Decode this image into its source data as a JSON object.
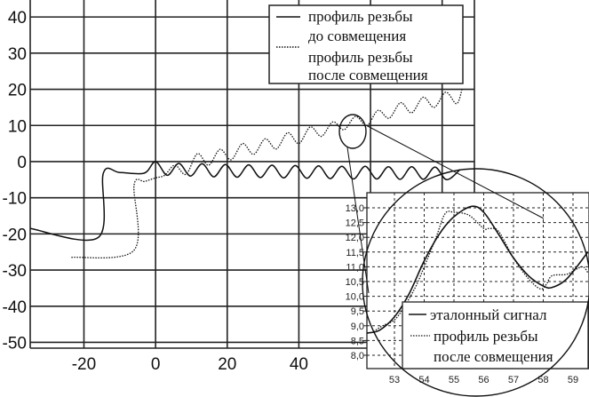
{
  "chart_data": [
    {
      "type": "line",
      "title": "",
      "xlabel": "",
      "ylabel": "",
      "xlim": [
        -35,
        89
      ],
      "ylim": [
        -51.6,
        44.7
      ],
      "x_ticks": [
        -20,
        0,
        20,
        40
      ],
      "x_grid": [
        -20,
        0,
        20,
        40,
        60,
        80
      ],
      "y_ticks": [
        40,
        30,
        20,
        10,
        0,
        -10,
        -20,
        -30,
        -40,
        -50
      ],
      "grid": true,
      "legend_placement": "top-right",
      "legend": [
        "профиль резьбы до совмещения",
        "профиль резьбы после совмещения"
      ],
      "legend_lines": [
        [
          "профиль резьбы",
          "до совмещения"
        ],
        [
          "профиль резьбы",
          "после совмещения"
        ]
      ],
      "series": [
        {
          "name": "профиль резьбы до совмещения",
          "style": "solid",
          "points": [
            [
              -35,
              -18.5
            ],
            [
              -16,
              -21
            ],
            [
              -14.6,
              -3.2
            ],
            [
              -10,
              -3
            ],
            [
              -3.2,
              -3.2
            ],
            [
              0,
              0
            ],
            [
              3.25,
              -3.8
            ],
            [
              6.5,
              -0.5
            ],
            [
              9.75,
              -4
            ],
            [
              13,
              -0.6
            ],
            [
              16.25,
              -4.2
            ],
            [
              19.5,
              -0.8
            ],
            [
              22.75,
              -4.3
            ],
            [
              26,
              -0.9
            ],
            [
              29.25,
              -4.4
            ],
            [
              32.5,
              -1
            ],
            [
              35.75,
              -4.5
            ],
            [
              39,
              -1.1
            ],
            [
              42.25,
              -4.6
            ],
            [
              45.5,
              -1.2
            ],
            [
              48.75,
              -4.7
            ],
            [
              52,
              -1.3
            ],
            [
              55.25,
              -4.8
            ],
            [
              58.5,
              -1.3
            ],
            [
              61.75,
              -4.8
            ],
            [
              65,
              -1.4
            ],
            [
              68.25,
              -4.9
            ],
            [
              71.5,
              -1.4
            ],
            [
              74.75,
              -4.9
            ],
            [
              78,
              -1.5
            ],
            [
              81.25,
              -5
            ],
            [
              85,
              -2.2
            ]
          ]
        },
        {
          "name": "профиль резьбы после совмещения",
          "style": "dotted",
          "points": [
            [
              -23.5,
              -26.5
            ],
            [
              -6,
              -24.5
            ],
            [
              -6,
              -6.5
            ],
            [
              -3,
              -5.5
            ],
            [
              0,
              -4.5
            ],
            [
              2.5,
              -3.8
            ],
            [
              5.4,
              -1
            ],
            [
              8.5,
              -3.5
            ],
            [
              11.7,
              2.2
            ],
            [
              14.8,
              -1
            ],
            [
              18,
              3.4
            ],
            [
              21.1,
              0.5
            ],
            [
              24.3,
              5
            ],
            [
              27.4,
              2
            ],
            [
              30.6,
              6.3
            ],
            [
              33.7,
              3.5
            ],
            [
              36.9,
              8
            ],
            [
              40,
              5
            ],
            [
              43.2,
              9.6
            ],
            [
              46.3,
              7
            ],
            [
              49.5,
              11
            ],
            [
              52.6,
              8.8
            ],
            [
              55.8,
              12.5
            ],
            [
              59,
              10
            ],
            [
              62.1,
              14.2
            ],
            [
              65.2,
              12
            ],
            [
              68.4,
              16.3
            ],
            [
              71.5,
              13.5
            ],
            [
              74.7,
              17.8
            ],
            [
              77.8,
              15
            ],
            [
              81,
              19.2
            ],
            [
              84,
              16
            ],
            [
              85.5,
              19.8
            ]
          ]
        }
      ]
    },
    {
      "type": "line",
      "title": "",
      "xlabel": "",
      "ylabel": "",
      "xlim": [
        52.07,
        59.5
      ],
      "ylim": [
        7.5,
        13.5
      ],
      "x_ticks": [
        53,
        54,
        55,
        56,
        57,
        58,
        59
      ],
      "y_ticks": [
        "13,0",
        "12,5",
        "12,0",
        "11,5",
        "11,0",
        "10,5",
        "10,0",
        "9,5",
        "9,0",
        "8,5",
        "8,0"
      ],
      "y_tick_values": [
        13.0,
        12.5,
        12.0,
        11.5,
        11.0,
        10.5,
        10.0,
        9.5,
        9.0,
        8.5,
        8.0
      ],
      "grid": "dashed",
      "legend_placement": "bottom-right",
      "legend_lines": [
        [
          "эталонный сигнал"
        ],
        [
          "профиль резьбы",
          "после совмещения"
        ]
      ],
      "series": [
        {
          "name": "эталонный сигнал",
          "style": "solid",
          "points": [
            [
              52.07,
              8.75
            ],
            [
              52.5,
              8.85
            ],
            [
              53,
              9.3
            ],
            [
              53.5,
              10.1
            ],
            [
              54,
              11.2
            ],
            [
              54.5,
              12.1
            ],
            [
              55,
              12.7
            ],
            [
              55.6,
              13.05
            ],
            [
              56,
              12.85
            ],
            [
              56.5,
              12.1
            ],
            [
              57,
              11.3
            ],
            [
              57.5,
              10.7
            ],
            [
              58,
              10.35
            ],
            [
              58.3,
              10.3
            ],
            [
              58.8,
              10.6
            ],
            [
              59.5,
              11.5
            ]
          ]
        },
        {
          "name": "профиль резьбы после совмещения",
          "style": "dotted",
          "points": [
            [
              52.3,
              8.8
            ],
            [
              52.6,
              9.0
            ],
            [
              53,
              9.2
            ],
            [
              53.3,
              9.6
            ],
            [
              53.7,
              10.3
            ],
            [
              54,
              11.0
            ],
            [
              54.4,
              12.0
            ],
            [
              54.7,
              12.8
            ],
            [
              55,
              12.85
            ],
            [
              55.5,
              12.75
            ],
            [
              56,
              12.3
            ],
            [
              56.2,
              12.3
            ],
            [
              56.5,
              12.2
            ],
            [
              57,
              11.3
            ],
            [
              57.5,
              10.6
            ],
            [
              57.9,
              10.25
            ],
            [
              58.1,
              10.4
            ],
            [
              58.3,
              10.7
            ],
            [
              58.8,
              10.75
            ],
            [
              59.3,
              11.0
            ],
            [
              59.5,
              10.8
            ]
          ]
        }
      ]
    }
  ],
  "colors": {
    "line": "#111111",
    "grid": "#222222",
    "background": "#ffffff"
  }
}
